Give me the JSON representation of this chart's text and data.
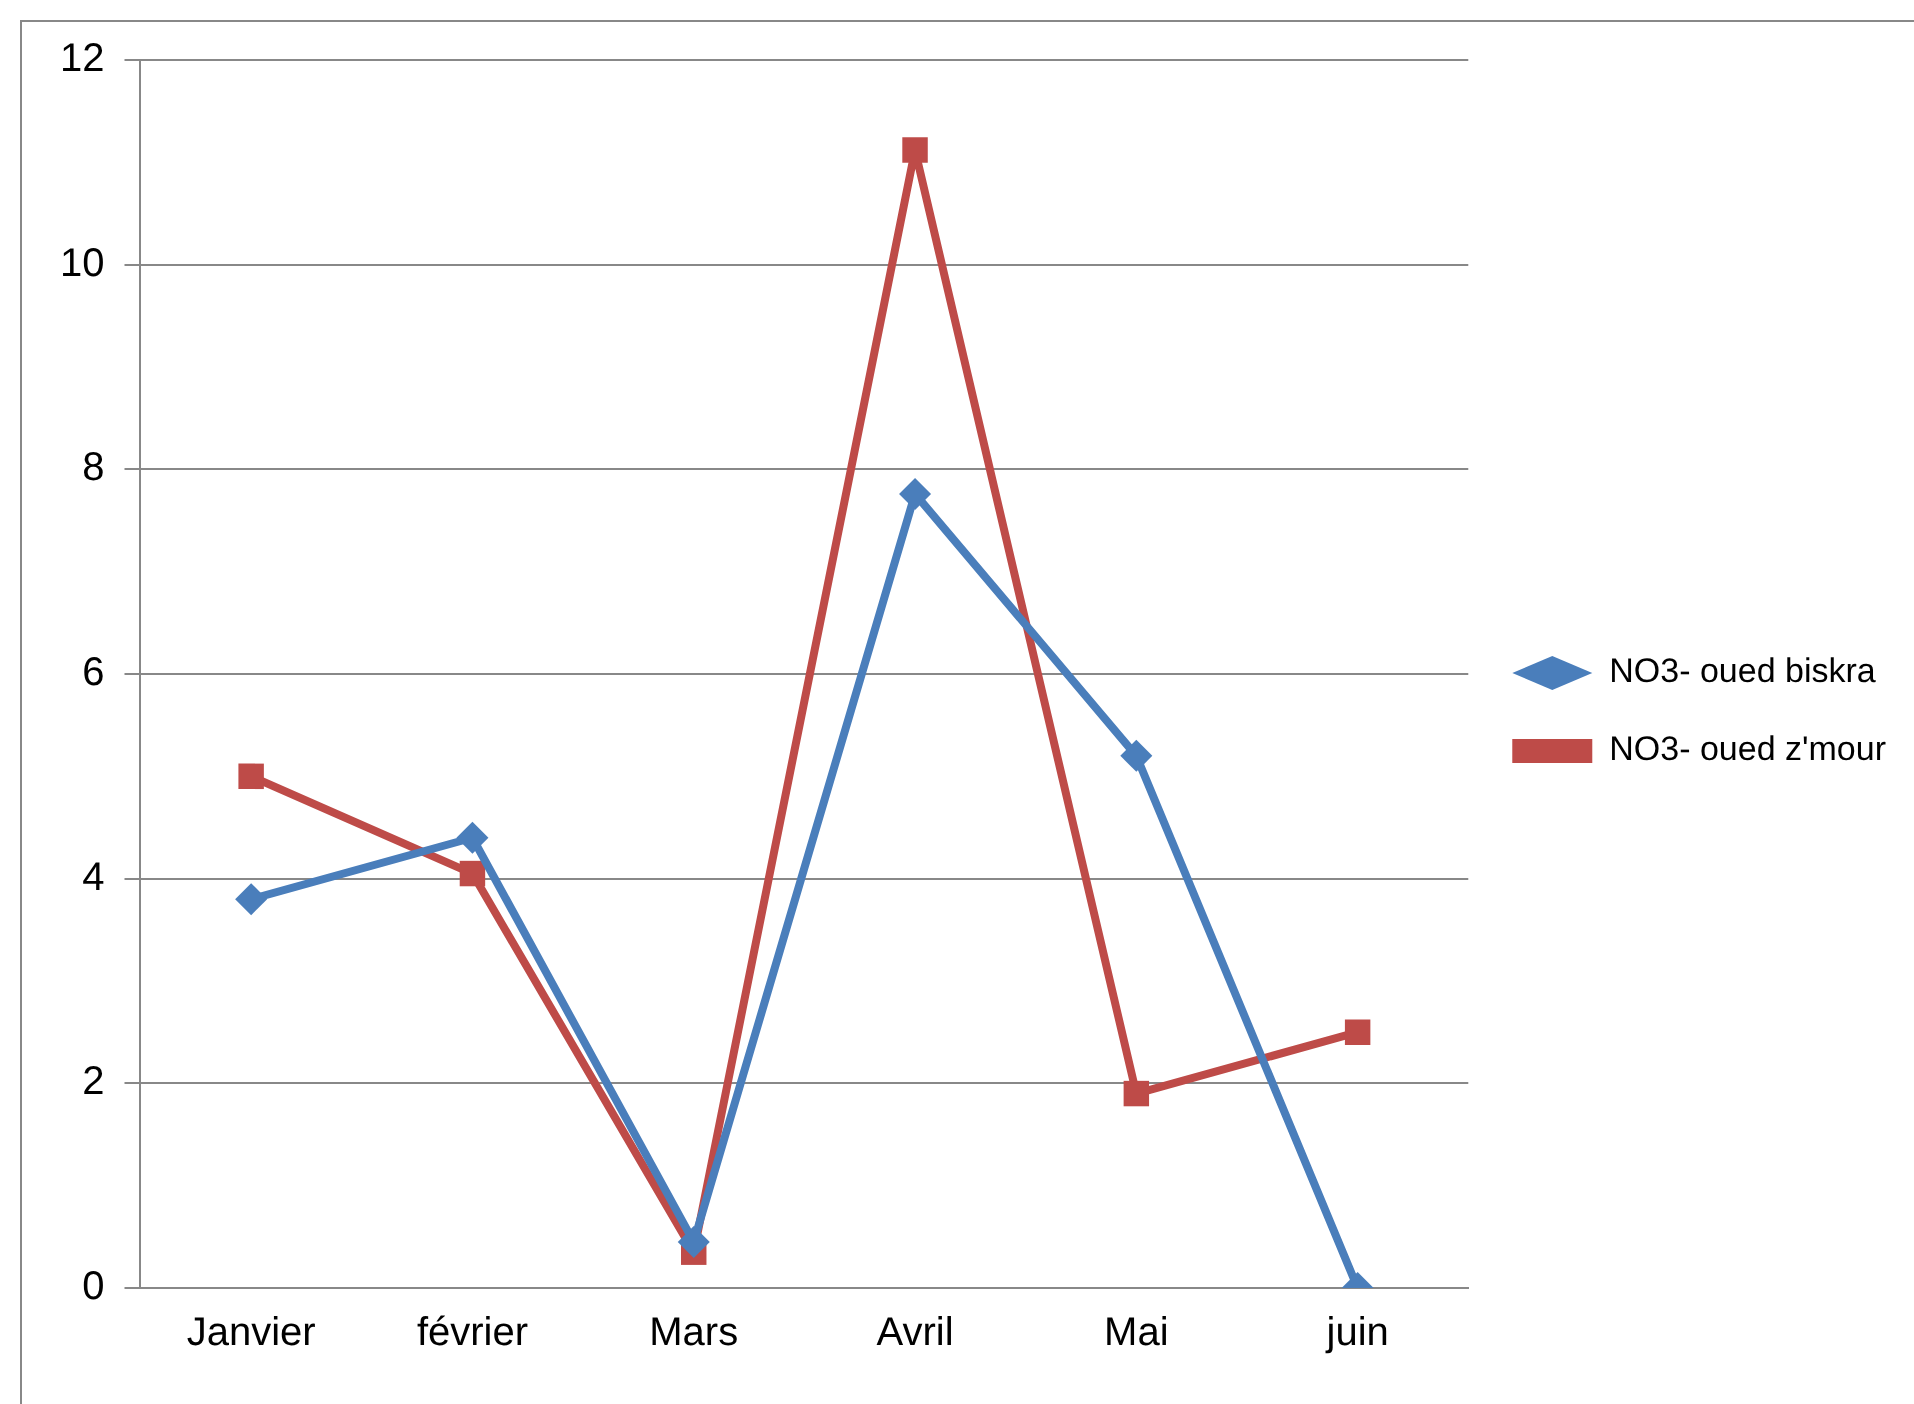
{
  "chart_data": {
    "type": "line",
    "categories": [
      "Janvier",
      "février",
      "Mars",
      "Avril",
      "Mai",
      "juin"
    ],
    "series": [
      {
        "name": "NO3- oued biskra",
        "color": "#4a7ebb",
        "values": [
          3.8,
          4.4,
          0.45,
          7.76,
          5.2,
          0
        ],
        "marker": "diamond"
      },
      {
        "name": "NO3- oued z'mour",
        "color": "#be4b48",
        "values": [
          5.0,
          4.05,
          0.35,
          11.12,
          1.9,
          2.5
        ],
        "marker": "square"
      }
    ],
    "ylim": [
      0,
      12
    ],
    "yticks": [
      0,
      2,
      4,
      6,
      8,
      10,
      12
    ],
    "grid": "y",
    "legend": "right",
    "line_style": "solid"
  }
}
